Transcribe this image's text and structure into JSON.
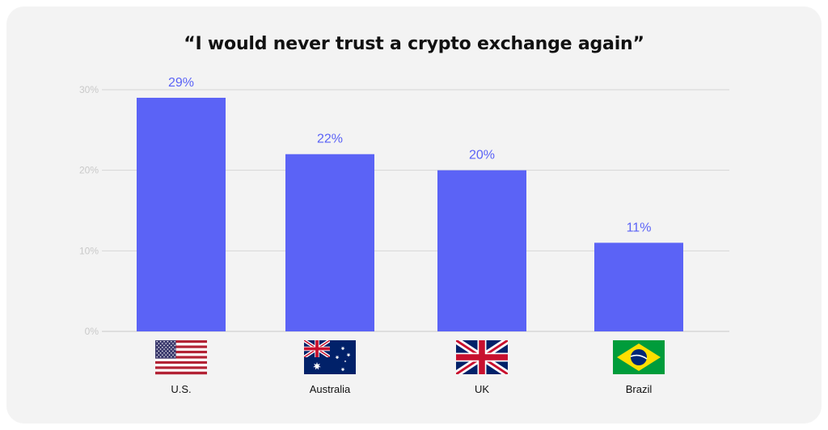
{
  "chart_data": {
    "type": "bar",
    "title": "“I would never trust a crypto exchange again”",
    "categories": [
      "U.S.",
      "Australia",
      "UK",
      "Brazil"
    ],
    "values": [
      29,
      22,
      20,
      11
    ],
    "value_labels": [
      "29%",
      "22%",
      "20%",
      "11%"
    ],
    "y_ticks": [
      {
        "value": 0,
        "label": "0%"
      },
      {
        "value": 10,
        "label": "10%"
      },
      {
        "value": 20,
        "label": "20%"
      },
      {
        "value": 30,
        "label": "30%"
      }
    ],
    "ylim": [
      0,
      30
    ],
    "grid": true,
    "bar_color": "#5b63f6",
    "category_icons": [
      "us-flag-icon",
      "australia-flag-icon",
      "uk-flag-icon",
      "brazil-flag-icon"
    ]
  }
}
